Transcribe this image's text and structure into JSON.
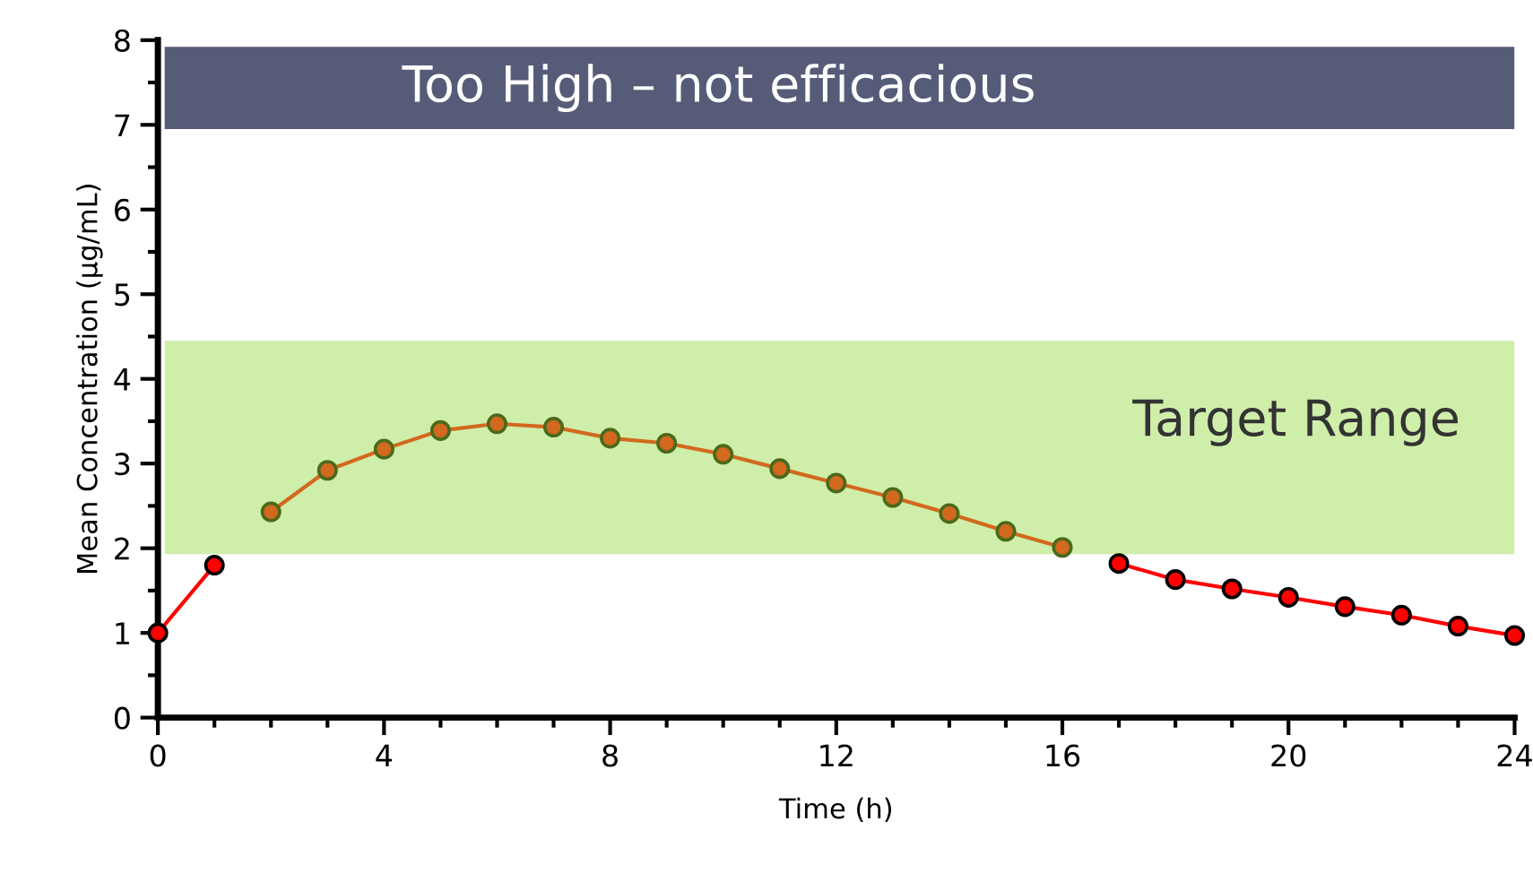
{
  "chart_data": {
    "type": "line",
    "xlabel": "Time (h)",
    "ylabel": "Mean Concentration (µg/mL)",
    "xlim": [
      0,
      24
    ],
    "xticks": [
      0,
      4,
      8,
      12,
      16,
      20,
      24
    ],
    "ylim": [
      0,
      8
    ],
    "yticks": [
      0,
      1,
      2,
      3,
      4,
      5,
      6,
      7,
      8
    ],
    "series": [
      {
        "color": "#d2691e",
        "x": [
          2,
          3,
          4,
          5,
          6,
          7,
          8,
          9,
          10,
          11,
          12,
          13,
          14,
          15,
          16
        ],
        "values": [
          2.43,
          2.92,
          3.17,
          3.39,
          3.47,
          3.43,
          3.3,
          3.24,
          3.11,
          2.94,
          2.77,
          2.6,
          2.41,
          2.2,
          2.01
        ]
      },
      {
        "color": "#ff0000",
        "x": [
          0,
          1,
          2,
          17,
          18,
          19,
          20,
          21,
          22,
          23,
          24
        ],
        "values": [
          1.0,
          1.8,
          null,
          1.82,
          1.63,
          1.52,
          1.42,
          1.31,
          1.21,
          1.08,
          0.97
        ]
      }
    ],
    "bands": [
      {
        "axis": "y",
        "from": 1.93,
        "to": 4.45,
        "label": "Target Range",
        "color": "#cfeeaa"
      },
      {
        "axis": "y",
        "from": 6.95,
        "to": 7.92,
        "label": "Too High – not efficacious",
        "color": "#565c78"
      }
    ],
    "marker": "circle",
    "grid": false,
    "legend": false
  }
}
